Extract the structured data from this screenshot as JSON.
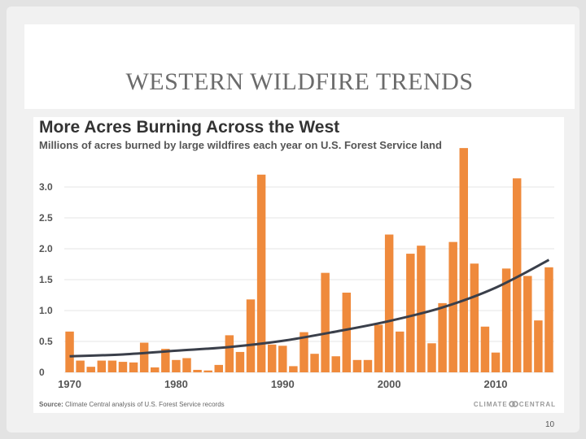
{
  "slide": {
    "title": "WESTERN WILDFIRE TRENDS",
    "page_number": "10"
  },
  "chart_data": {
    "type": "bar",
    "title": "More Acres Burning Across the West",
    "subtitle": "Millions of acres burned by large wildfires each year on U.S. Forest Service land",
    "source_label": "Source:",
    "source": "Climate Central analysis of U.S. Forest Service records",
    "brand": [
      "CLIMATE",
      "CENTRAL"
    ],
    "xlabel": "",
    "ylabel": "",
    "ylim": [
      0,
      3.5
    ],
    "y_ticks": [
      "0",
      "0.5",
      "1.0",
      "1.5",
      "2.0",
      "2.5",
      "3.0"
    ],
    "x_tick_labels": [
      "1970",
      "1980",
      "1990",
      "2000",
      "2010"
    ],
    "x": [
      1970,
      1971,
      1972,
      1973,
      1974,
      1975,
      1976,
      1977,
      1978,
      1979,
      1980,
      1981,
      1982,
      1983,
      1984,
      1985,
      1986,
      1987,
      1988,
      1989,
      1990,
      1991,
      1992,
      1993,
      1994,
      1995,
      1996,
      1997,
      1998,
      1999,
      2000,
      2001,
      2002,
      2003,
      2004,
      2005,
      2006,
      2007,
      2008,
      2009,
      2010,
      2011,
      2012,
      2013,
      2014,
      2015
    ],
    "values": [
      0.66,
      0.19,
      0.09,
      0.19,
      0.19,
      0.17,
      0.16,
      0.48,
      0.08,
      0.38,
      0.2,
      0.23,
      0.04,
      0.03,
      0.12,
      0.6,
      0.33,
      1.18,
      3.2,
      0.45,
      0.43,
      0.1,
      0.65,
      0.3,
      1.61,
      0.26,
      1.29,
      0.2,
      0.2,
      0.77,
      2.23,
      0.66,
      1.92,
      2.05,
      0.47,
      1.12,
      2.11,
      3.63,
      1.76,
      0.74,
      0.32,
      1.68,
      3.14,
      1.56,
      0.84,
      1.7
    ],
    "trend": [
      {
        "x": 1970,
        "y": 0.26
      },
      {
        "x": 1975,
        "y": 0.29
      },
      {
        "x": 1980,
        "y": 0.35
      },
      {
        "x": 1985,
        "y": 0.41
      },
      {
        "x": 1990,
        "y": 0.51
      },
      {
        "x": 1995,
        "y": 0.66
      },
      {
        "x": 2000,
        "y": 0.83
      },
      {
        "x": 2005,
        "y": 1.05
      },
      {
        "x": 2010,
        "y": 1.37
      },
      {
        "x": 2015,
        "y": 1.82
      }
    ],
    "grid": true,
    "legend": "none",
    "colors": {
      "bar": "#ef8a3c",
      "trend": "#3a3f4a"
    }
  }
}
